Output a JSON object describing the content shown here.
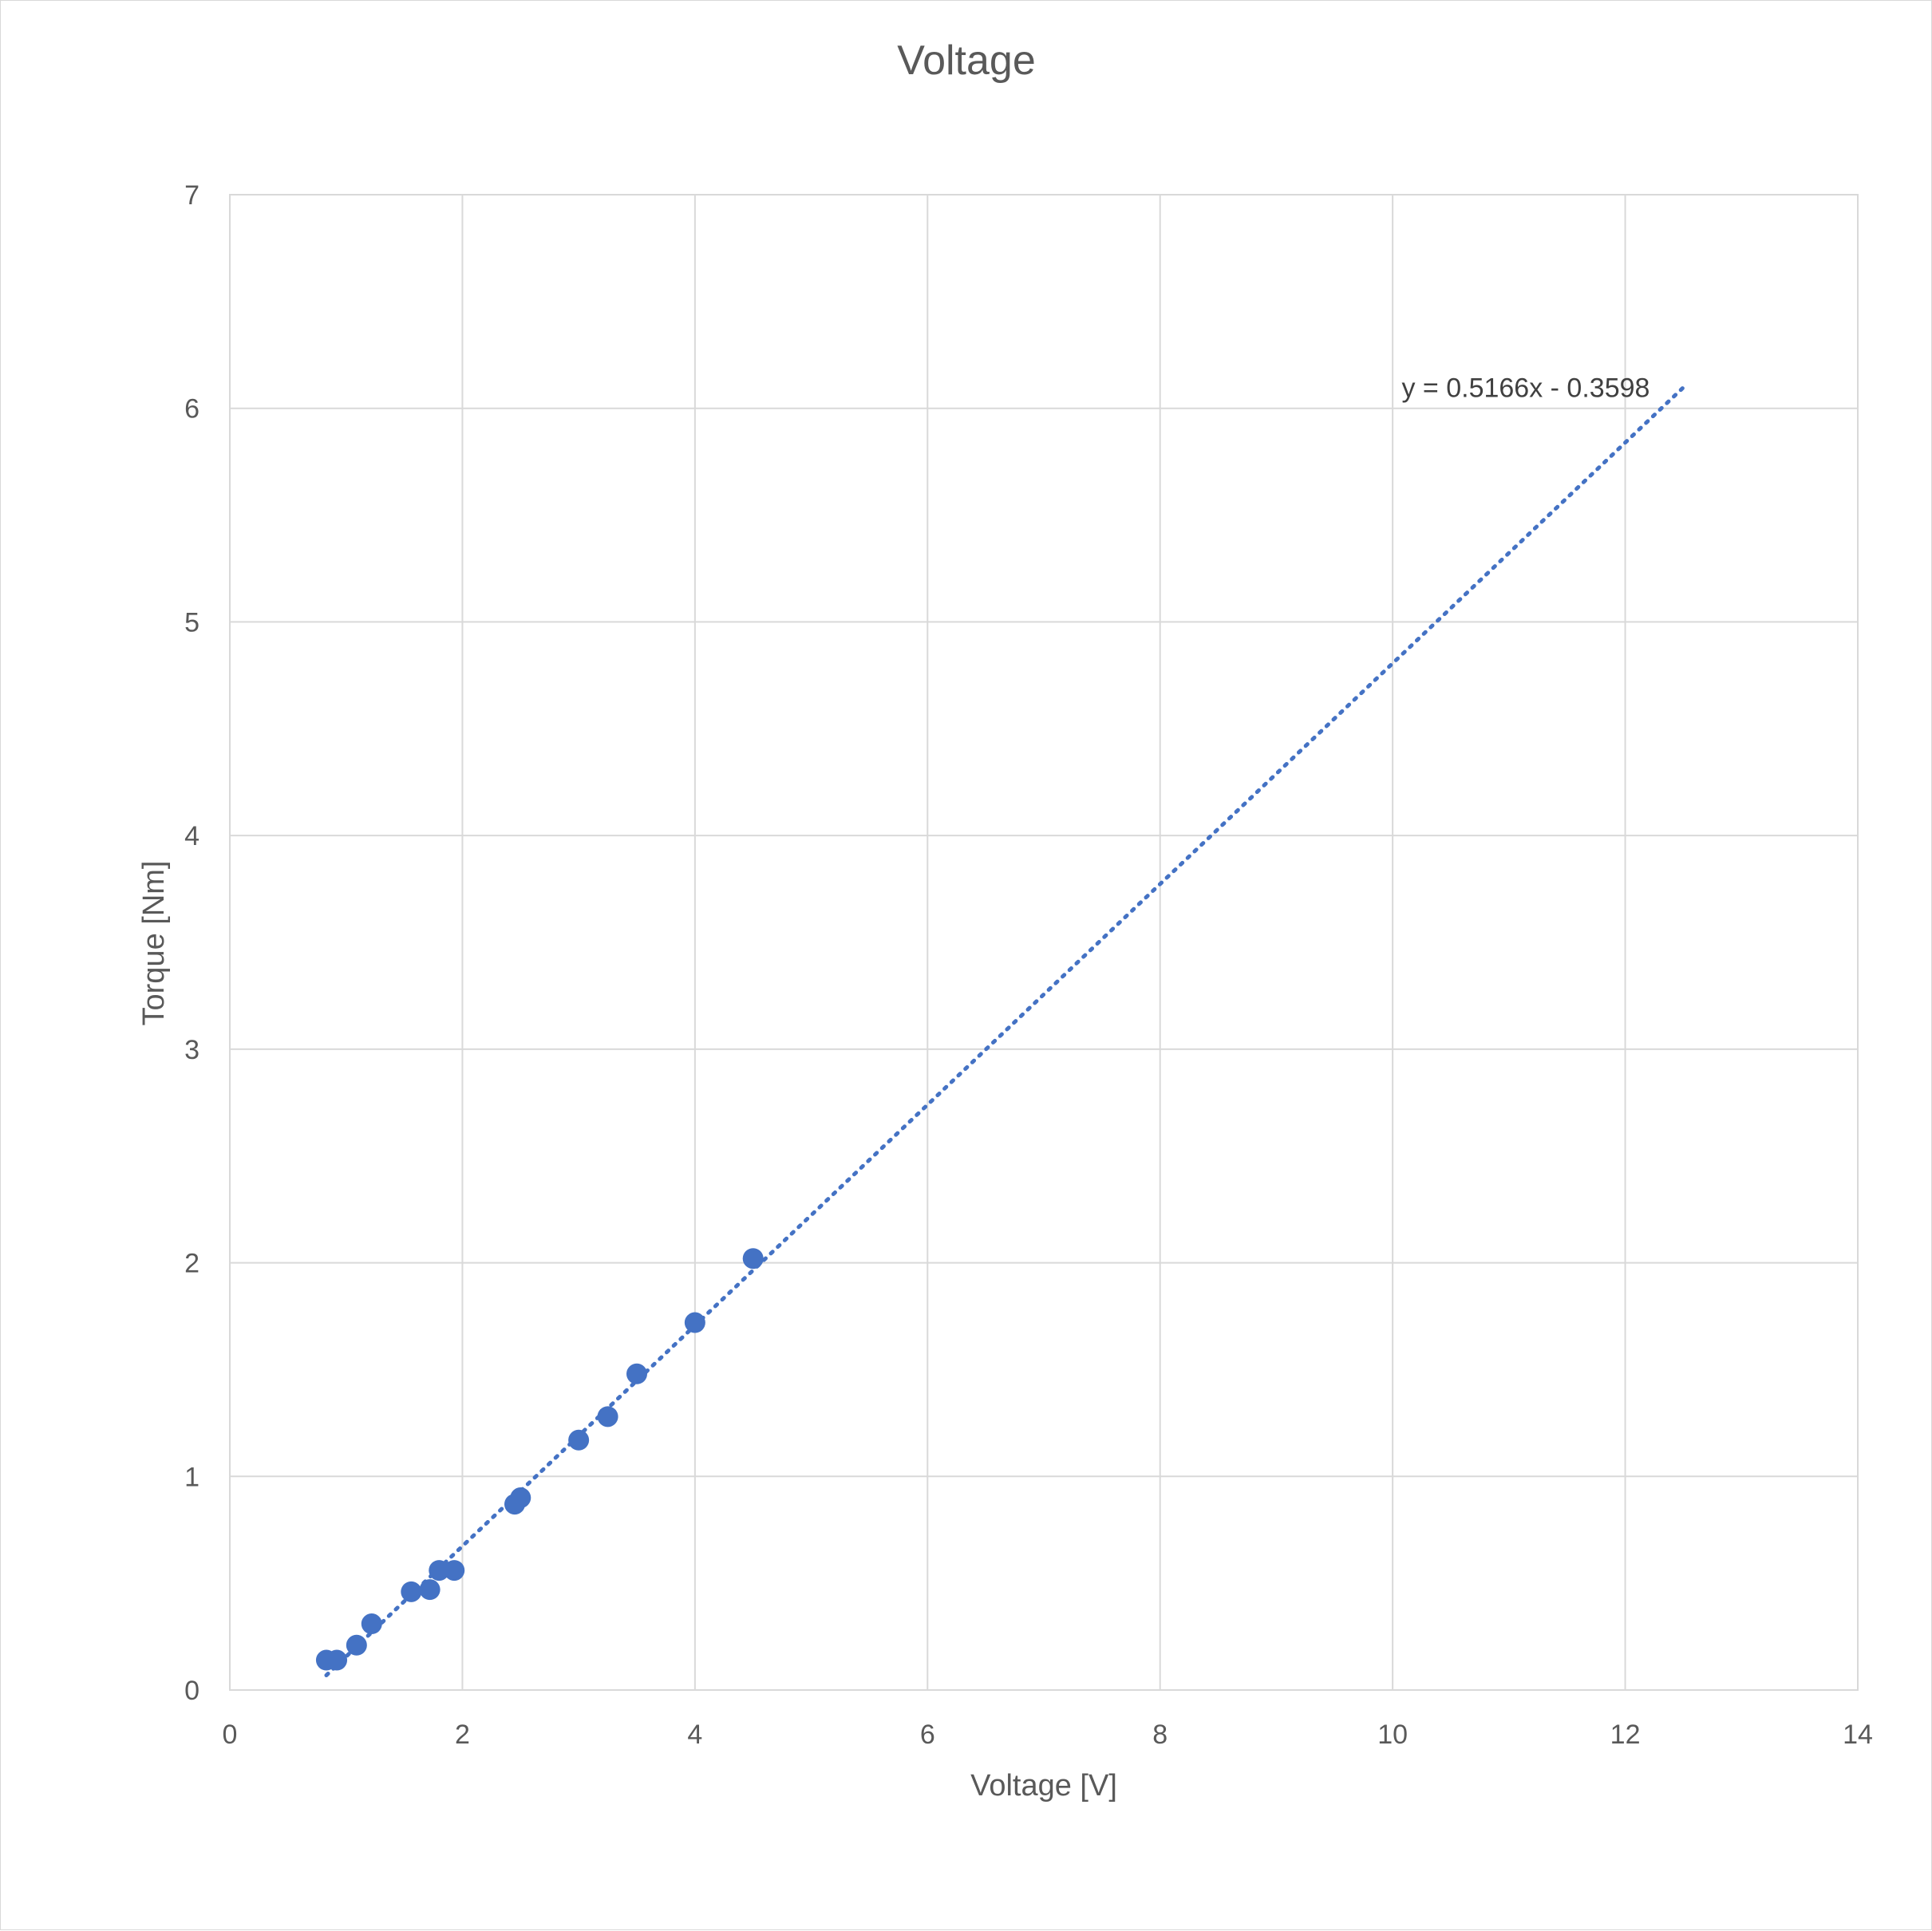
{
  "chart_data": {
    "type": "scatter",
    "title": "Voltage",
    "xlabel": "Voltage [V]",
    "ylabel": "Torque [Nm]",
    "xlim": [
      0,
      14
    ],
    "ylim": [
      0,
      7
    ],
    "xticks": [
      0,
      2,
      4,
      6,
      8,
      10,
      12,
      14
    ],
    "yticks": [
      0,
      1,
      2,
      3,
      4,
      5,
      6,
      7
    ],
    "grid": true,
    "legend": "none",
    "marker_color": "#4472C4",
    "points": [
      {
        "x": 0.83,
        "y": 0.14
      },
      {
        "x": 0.92,
        "y": 0.14
      },
      {
        "x": 1.09,
        "y": 0.21
      },
      {
        "x": 1.22,
        "y": 0.31
      },
      {
        "x": 1.56,
        "y": 0.46
      },
      {
        "x": 1.72,
        "y": 0.47
      },
      {
        "x": 1.8,
        "y": 0.56
      },
      {
        "x": 1.93,
        "y": 0.56
      },
      {
        "x": 2.45,
        "y": 0.87
      },
      {
        "x": 2.5,
        "y": 0.9
      },
      {
        "x": 3.0,
        "y": 1.17
      },
      {
        "x": 3.25,
        "y": 1.28
      },
      {
        "x": 3.5,
        "y": 1.48
      },
      {
        "x": 4.0,
        "y": 1.72
      },
      {
        "x": 4.5,
        "y": 2.02
      }
    ],
    "trendline": {
      "type": "linear",
      "slope": 0.5166,
      "intercept": -0.3598,
      "x_range": [
        0.83,
        12.5
      ],
      "style": "dotted",
      "equation_label": "y = 0.5166x - 0.3598"
    }
  }
}
